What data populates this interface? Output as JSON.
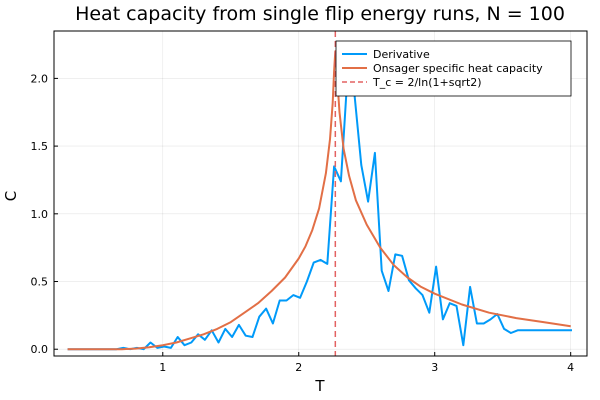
{
  "chart_data": {
    "type": "line",
    "title": "Heat capacity from single flip energy runs, N = 100",
    "xlabel": "T",
    "ylabel": "C",
    "xlim": [
      0.2,
      4.12
    ],
    "ylim": [
      -0.05,
      2.35
    ],
    "xticks": [
      1,
      2,
      3,
      4
    ],
    "yticks": [
      0.0,
      0.5,
      1.0,
      1.5,
      2.0
    ],
    "xtick_labels": [
      "1",
      "2",
      "3",
      "4"
    ],
    "ytick_labels": [
      "0.0",
      "0.5",
      "1.0",
      "1.5",
      "2.0"
    ],
    "grid": true,
    "legend_position": "top-right",
    "colors": {
      "derivative": "#009AF9",
      "onsager": "#E26F46",
      "tc": "#E36262"
    },
    "series": [
      {
        "name": "Derivative",
        "style": "solid",
        "x": [
          0.3,
          0.4,
          0.5,
          0.6,
          0.66,
          0.71,
          0.76,
          0.81,
          0.86,
          0.91,
          0.96,
          1.01,
          1.06,
          1.11,
          1.16,
          1.21,
          1.26,
          1.31,
          1.36,
          1.41,
          1.46,
          1.51,
          1.56,
          1.61,
          1.66,
          1.71,
          1.76,
          1.81,
          1.86,
          1.91,
          1.96,
          2.01,
          2.06,
          2.11,
          2.16,
          2.21,
          2.26,
          2.31,
          2.36,
          2.41,
          2.46,
          2.51,
          2.56,
          2.61,
          2.66,
          2.71,
          2.76,
          2.81,
          2.86,
          2.91,
          2.96,
          3.01,
          3.06,
          3.11,
          3.16,
          3.21,
          3.26,
          3.31,
          3.36,
          3.41,
          3.46,
          3.51,
          3.56,
          3.61,
          3.66,
          3.71,
          3.76,
          3.81,
          3.86,
          3.91,
          3.96,
          4.01
        ],
        "y": [
          0.0,
          0.0,
          0.0,
          0.0,
          0.0,
          0.01,
          0.0,
          0.01,
          0.0,
          0.05,
          0.01,
          0.02,
          0.01,
          0.09,
          0.03,
          0.05,
          0.11,
          0.07,
          0.14,
          0.05,
          0.15,
          0.09,
          0.18,
          0.1,
          0.09,
          0.24,
          0.3,
          0.19,
          0.36,
          0.36,
          0.4,
          0.38,
          0.5,
          0.64,
          0.66,
          0.63,
          1.35,
          1.24,
          2.05,
          1.88,
          1.36,
          1.09,
          1.45,
          0.58,
          0.43,
          0.7,
          0.69,
          0.51,
          0.45,
          0.4,
          0.27,
          0.61,
          0.22,
          0.34,
          0.32,
          0.03,
          0.46,
          0.19,
          0.19,
          0.22,
          0.26,
          0.15,
          0.12,
          0.14,
          0.14,
          0.14,
          0.14,
          0.14,
          0.14,
          0.14,
          0.14,
          0.14
        ]
      },
      {
        "name": "Onsager specific heat capacity",
        "style": "solid",
        "x": [
          0.3,
          0.5,
          0.7,
          0.8,
          0.9,
          1.0,
          1.1,
          1.2,
          1.3,
          1.4,
          1.5,
          1.6,
          1.7,
          1.8,
          1.9,
          2.0,
          2.05,
          2.1,
          2.15,
          2.2,
          2.23,
          2.25,
          2.26,
          2.269,
          2.28,
          2.3,
          2.33,
          2.37,
          2.42,
          2.5,
          2.6,
          2.7,
          2.8,
          2.9,
          3.0,
          3.2,
          3.4,
          3.6,
          3.8,
          4.0
        ],
        "y": [
          0.0,
          0.0,
          0.0,
          0.005,
          0.015,
          0.03,
          0.05,
          0.08,
          0.11,
          0.15,
          0.2,
          0.27,
          0.34,
          0.43,
          0.53,
          0.67,
          0.76,
          0.88,
          1.04,
          1.3,
          1.55,
          1.82,
          2.05,
          2.2,
          2.05,
          1.75,
          1.48,
          1.28,
          1.1,
          0.92,
          0.75,
          0.62,
          0.53,
          0.46,
          0.41,
          0.33,
          0.27,
          0.23,
          0.2,
          0.17
        ]
      }
    ],
    "reference_lines": [
      {
        "name": "T_c = 2/ln(1+sqrt2)",
        "orientation": "vertical",
        "x": 2.269,
        "style": "dashed"
      }
    ]
  }
}
